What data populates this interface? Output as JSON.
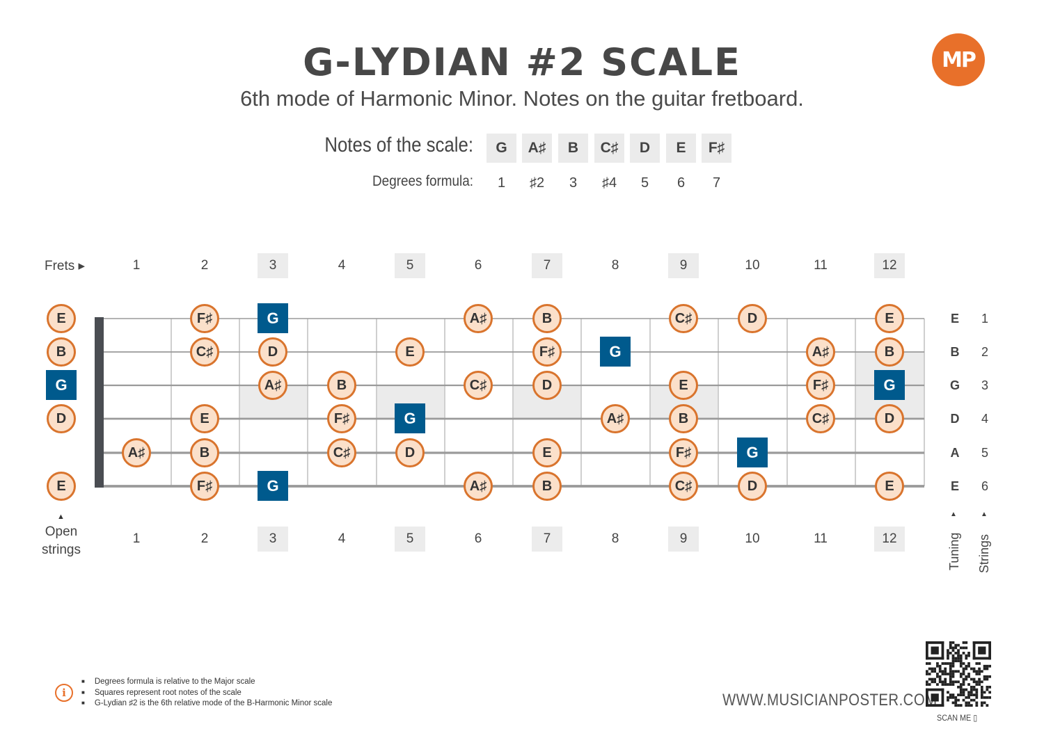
{
  "header": {
    "title": "G-LYDIAN #2 SCALE",
    "subtitle": "6th mode of Harmonic Minor. Notes on the guitar fretboard.",
    "logo": "MP"
  },
  "scale": {
    "notes_label": "Notes of the scale:",
    "notes": [
      "G",
      "A♯",
      "B",
      "C♯",
      "D",
      "E",
      "F♯"
    ],
    "degrees_label": "Degrees formula:",
    "degrees": [
      "1",
      "♯2",
      "3",
      "♯4",
      "5",
      "6",
      "7"
    ]
  },
  "fretboard": {
    "frets_label": "Frets ▸",
    "fret_numbers": [
      "1",
      "2",
      "3",
      "4",
      "5",
      "6",
      "7",
      "8",
      "9",
      "10",
      "11",
      "12"
    ],
    "marked_frets": [
      3,
      5,
      7,
      9,
      12
    ],
    "open_label_line1": "Open",
    "open_label_line2": "strings",
    "tuning": [
      "E",
      "B",
      "G",
      "D",
      "A",
      "E"
    ],
    "string_numbers": [
      "1",
      "2",
      "3",
      "4",
      "5",
      "6"
    ],
    "tuning_label": "Tuning",
    "strings_label": "Strings",
    "root_note": "G",
    "strings": [
      {
        "open": "E",
        "notes": [
          "",
          "F♯",
          "G",
          "",
          "",
          "A♯",
          "B",
          "",
          "C♯",
          "D",
          "",
          "E"
        ]
      },
      {
        "open": "B",
        "notes": [
          "",
          "C♯",
          "D",
          "",
          "E",
          "",
          "F♯",
          "G",
          "",
          "",
          "A♯",
          "B"
        ]
      },
      {
        "open": "G",
        "notes": [
          "",
          "",
          "A♯",
          "B",
          "",
          "C♯",
          "D",
          "",
          "E",
          "",
          "F♯",
          "G"
        ]
      },
      {
        "open": "D",
        "notes": [
          "",
          "E",
          "",
          "F♯",
          "G",
          "",
          "",
          "A♯",
          "B",
          "",
          "C♯",
          "D"
        ]
      },
      {
        "open": "",
        "notes": [
          "A♯",
          "B",
          "",
          "C♯",
          "D",
          "",
          "E",
          "",
          "F♯",
          "G",
          "",
          ""
        ]
      },
      {
        "open": "E",
        "notes": [
          "",
          "F♯",
          "G",
          "",
          "",
          "A♯",
          "B",
          "",
          "C♯",
          "D",
          "",
          "E"
        ]
      }
    ]
  },
  "footer": {
    "notes": [
      "Degrees formula is relative to the Major scale",
      "Squares represent root notes of the scale",
      "G-Lydian ♯2 is the 6th relative mode of the B-Harmonic Minor scale"
    ],
    "info_icon": "i",
    "website": "WWW.MUSICIANPOSTER.COM",
    "scan_label": "SCAN ME ▯"
  },
  "colors": {
    "accent": "#e8702a",
    "root": "#005a8d",
    "note_fill": "#fbe0ca",
    "note_border": "#d9742d",
    "fret_shade": "#ececec"
  }
}
